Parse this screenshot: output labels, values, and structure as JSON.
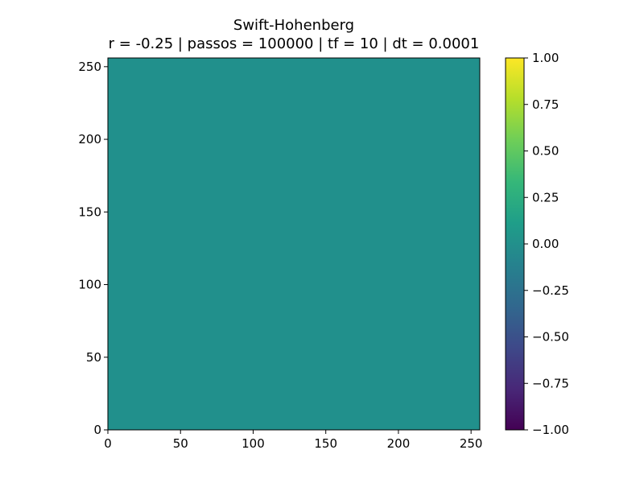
{
  "chart_data": {
    "type": "heatmap",
    "title": "Swift-Hohenberg",
    "subtitle": "r = -0.25 | passos = 100000 | tf = 10 | dt = 0.0001",
    "xlabel": "",
    "ylabel": "",
    "xlim": [
      0,
      256
    ],
    "ylim": [
      0,
      256
    ],
    "x_ticks": [
      "0",
      "50",
      "100",
      "150",
      "200",
      "250"
    ],
    "x_tick_values": [
      0,
      50,
      100,
      150,
      200,
      250
    ],
    "y_ticks": [
      "0",
      "50",
      "100",
      "150",
      "200",
      "250"
    ],
    "y_tick_values": [
      0,
      50,
      100,
      150,
      200,
      250
    ],
    "field_value_approx": 0.0,
    "field_color": "#21908c",
    "colormap": "viridis",
    "colorbar": {
      "range": [
        -1.0,
        1.0
      ],
      "ticks": [
        "1.00",
        "0.75",
        "0.50",
        "0.25",
        "0.00",
        "−0.25",
        "−0.50",
        "−0.75",
        "−1.00"
      ],
      "tick_values": [
        1.0,
        0.75,
        0.5,
        0.25,
        0.0,
        -0.25,
        -0.5,
        -0.75,
        -1.0
      ],
      "stops": [
        "#440154",
        "#482878",
        "#3e4989",
        "#31688e",
        "#26828e",
        "#1f9e89",
        "#35b779",
        "#6ece58",
        "#b5de2b",
        "#fde725"
      ]
    },
    "grid": false
  }
}
